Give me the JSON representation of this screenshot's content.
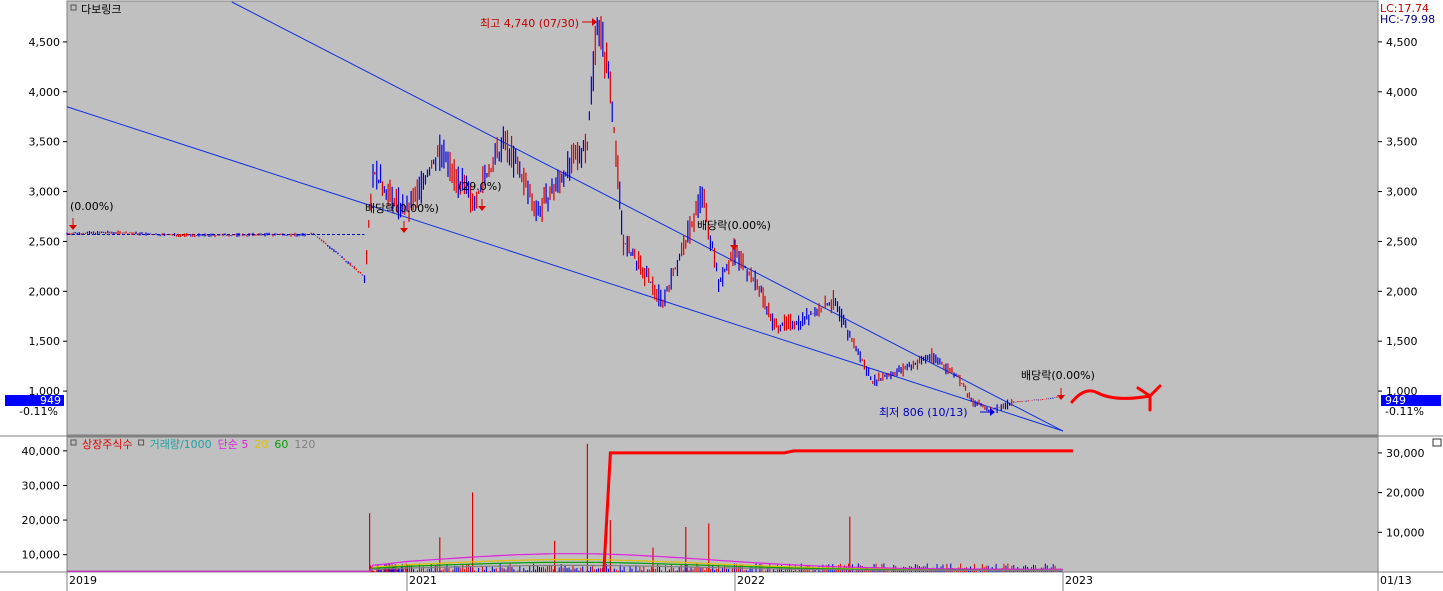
{
  "chart_data": {
    "type": "candlestick",
    "title": "다보링크",
    "indicators": {
      "lc": "LC:17.74",
      "hc": "HC:-79.98"
    },
    "price": {
      "current": 949,
      "current_label": "949",
      "change_label": "-0.11%",
      "yticks": [
        {
          "value": 1000,
          "label": "1,000"
        },
        {
          "value": 1500,
          "label": "1,500"
        },
        {
          "value": 2000,
          "label": "2,000"
        },
        {
          "value": 2500,
          "label": "2,500"
        },
        {
          "value": 3000,
          "label": "3,000"
        },
        {
          "value": 3500,
          "label": "3,500"
        },
        {
          "value": 4000,
          "label": "4,000"
        },
        {
          "value": 4500,
          "label": "4,500"
        }
      ],
      "ylim": [
        570,
        4900
      ],
      "series": [
        {
          "t": 2019.0,
          "v": 2580
        },
        {
          "t": 2019.3,
          "v": 2590
        },
        {
          "t": 2019.5,
          "v": 2570
        },
        {
          "t": 2019.8,
          "v": 2560
        },
        {
          "t": 2020.2,
          "v": 2570
        },
        {
          "t": 2020.4,
          "v": 2565
        },
        {
          "t": 2020.45,
          "v": 2580
        },
        {
          "t": 2020.75,
          "v": 2150
        },
        {
          "t": 2020.8,
          "v": 3200
        },
        {
          "t": 2020.9,
          "v": 2950
        },
        {
          "t": 2021.0,
          "v": 2800
        },
        {
          "t": 2021.1,
          "v": 3400
        },
        {
          "t": 2021.2,
          "v": 2900
        },
        {
          "t": 2021.3,
          "v": 3500
        },
        {
          "t": 2021.4,
          "v": 2800
        },
        {
          "t": 2021.55,
          "v": 3500
        },
        {
          "t": 2021.58,
          "v": 4740
        },
        {
          "t": 2021.62,
          "v": 4100
        },
        {
          "t": 2021.66,
          "v": 2500
        },
        {
          "t": 2021.7,
          "v": 2300
        },
        {
          "t": 2021.78,
          "v": 1900
        },
        {
          "t": 2021.85,
          "v": 2500
        },
        {
          "t": 2021.9,
          "v": 2980
        },
        {
          "t": 2021.95,
          "v": 2100
        },
        {
          "t": 2022.0,
          "v": 2400
        },
        {
          "t": 2022.08,
          "v": 2000
        },
        {
          "t": 2022.12,
          "v": 1650
        },
        {
          "t": 2022.2,
          "v": 1700
        },
        {
          "t": 2022.3,
          "v": 1900
        },
        {
          "t": 2022.35,
          "v": 1550
        },
        {
          "t": 2022.42,
          "v": 1100
        },
        {
          "t": 2022.5,
          "v": 1200
        },
        {
          "t": 2022.6,
          "v": 1350
        },
        {
          "t": 2022.68,
          "v": 1150
        },
        {
          "t": 2022.72,
          "v": 900
        },
        {
          "t": 2022.78,
          "v": 806
        },
        {
          "t": 2022.85,
          "v": 890
        },
        {
          "t": 2022.95,
          "v": 920
        },
        {
          "t": 2023.0,
          "v": 949
        }
      ],
      "annotations": [
        {
          "text": "최고 4,740 (07/30)",
          "kind": "high"
        },
        {
          "text": "최저 806 (10/13)",
          "kind": "low"
        },
        {
          "text": "(0.00%)",
          "kind": "dividend"
        },
        {
          "text": "배당락(0.00%)",
          "kind": "dividend"
        },
        {
          "text": "(29.0%)",
          "kind": "dividend"
        },
        {
          "text": "배당락(0.00%)",
          "kind": "dividend"
        },
        {
          "text": "배당락(0.00%)",
          "kind": "dividend"
        }
      ]
    },
    "volume": {
      "legend": [
        {
          "text": "상장주식수",
          "color": "#e00000"
        },
        {
          "text": "거래량/1000",
          "color": "#20a0a0"
        },
        {
          "text": "단순 5",
          "color": "#e020e0"
        },
        {
          "text": "20",
          "color": "#e0c000"
        },
        {
          "text": "60",
          "color": "#00a000"
        },
        {
          "text": "120",
          "color": "#808080"
        }
      ],
      "yticks_left": [
        {
          "value": 10000,
          "label": "10,000"
        },
        {
          "value": 20000,
          "label": "20,000"
        },
        {
          "value": 30000,
          "label": "30,000"
        },
        {
          "value": 40000,
          "label": "40,000"
        }
      ],
      "ylim_left": [
        5000,
        44000
      ],
      "yticks_right": [
        {
          "value": 10000,
          "label": "10,000"
        },
        {
          "value": 20000,
          "label": "20,000"
        },
        {
          "value": 30000,
          "label": "30,000"
        }
      ],
      "ylim_right": [
        0,
        34000
      ],
      "spikes": [
        {
          "t": 2020.78,
          "v": 22000
        },
        {
          "t": 2021.1,
          "v": 15000
        },
        {
          "t": 2021.2,
          "v": 28000
        },
        {
          "t": 2021.45,
          "v": 14000
        },
        {
          "t": 2021.55,
          "v": 42000
        },
        {
          "t": 2021.62,
          "v": 20000
        },
        {
          "t": 2021.75,
          "v": 12000
        },
        {
          "t": 2021.85,
          "v": 18000
        },
        {
          "t": 2021.92,
          "v": 19000
        },
        {
          "t": 2022.35,
          "v": 21000
        }
      ],
      "listed_shares": [
        {
          "t": 2021.6,
          "v": 0
        },
        {
          "t": 2021.62,
          "v": 30000
        },
        {
          "t": 2022.15,
          "v": 30000
        },
        {
          "t": 2022.18,
          "v": 30500
        },
        {
          "t": 2023.03,
          "v": 30500
        }
      ]
    },
    "xticks": [
      {
        "value": 2019.0,
        "label": "2019"
      },
      {
        "value": 2021.0,
        "label": "2021"
      },
      {
        "value": 2022.0,
        "label": "2022"
      },
      {
        "value": 2023.0,
        "label": "2023"
      },
      {
        "value": 2023.95,
        "label": "01/13"
      }
    ],
    "trendlines": [
      {
        "name": "upper",
        "from": {
          "t": 2019.97,
          "v": 4900
        },
        "to": {
          "t": 2023.0,
          "v": 600
        }
      },
      {
        "name": "lower",
        "from": {
          "t": 2019.0,
          "v": 3850
        },
        "to": {
          "t": 2023.0,
          "v": 600
        }
      }
    ]
  }
}
